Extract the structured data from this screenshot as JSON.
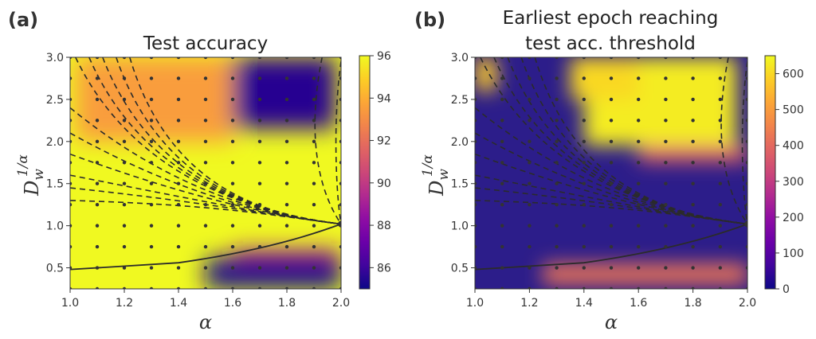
{
  "chart_data": [
    {
      "type": "heatmap",
      "panel_label": "(a)",
      "title": "Test accuracy",
      "xlabel": "α",
      "ylabel_main": "D",
      "ylabel_sub": "w",
      "ylabel_sup": "1/α",
      "xlim": [
        1.0,
        2.0
      ],
      "ylim": [
        0.25,
        3.0
      ],
      "xticks": [
        "1.0",
        "1.2",
        "1.4",
        "1.6",
        "1.8",
        "2.0"
      ],
      "yticks": [
        "0.5",
        "1.0",
        "1.5",
        "2.0",
        "2.5",
        "3.0"
      ],
      "colorbar": {
        "range": [
          85,
          96
        ],
        "ticks": [
          "86",
          "88",
          "90",
          "92",
          "94",
          "96"
        ],
        "colormap": "plasma"
      },
      "grid_points": {
        "alpha": [
          1.0,
          1.1,
          1.2,
          1.3,
          1.4,
          1.5,
          1.6,
          1.7,
          1.8,
          1.9,
          2.0
        ],
        "d": [
          0.25,
          0.5,
          0.75,
          1.0,
          1.25,
          1.5,
          1.75,
          2.0,
          2.25,
          2.5,
          2.75,
          3.0
        ]
      },
      "regions": [
        {
          "alpha": [
            1.6,
            1.98
          ],
          "d": [
            2.15,
            3.0
          ],
          "value": 85.5
        },
        {
          "alpha": [
            1.5,
            2.0
          ],
          "d": [
            0.25,
            0.62
          ],
          "value": 85.3
        },
        {
          "alpha": [
            1.02,
            1.6
          ],
          "d": [
            2.0,
            3.0
          ],
          "value": 93.5
        },
        {
          "alpha": [
            1.6,
            2.0
          ],
          "d": [
            0.62,
            0.72
          ],
          "value": 89.0
        }
      ]
    },
    {
      "type": "heatmap",
      "panel_label": "(b)",
      "title_lines": [
        "Earliest epoch reaching",
        "test acc. threshold"
      ],
      "xlabel": "α",
      "ylabel_main": "D",
      "ylabel_sub": "w",
      "ylabel_sup": "1/α",
      "xlim": [
        1.0,
        2.0
      ],
      "ylim": [
        0.25,
        3.0
      ],
      "xticks": [
        "1.0",
        "1.2",
        "1.4",
        "1.6",
        "1.8",
        "2.0"
      ],
      "yticks": [
        "0.5",
        "1.0",
        "1.5",
        "2.0",
        "2.5",
        "3.0"
      ],
      "colorbar": {
        "range": [
          0,
          650
        ],
        "ticks": [
          "0",
          "100",
          "200",
          "300",
          "400",
          "500",
          "600"
        ],
        "colormap": "plasma"
      },
      "grid_points": {
        "alpha": [
          1.0,
          1.1,
          1.2,
          1.3,
          1.4,
          1.5,
          1.6,
          1.7,
          1.8,
          1.9,
          2.0
        ],
        "d": [
          0.25,
          0.5,
          0.75,
          1.0,
          1.25,
          1.5,
          1.75,
          2.0,
          2.25,
          2.5,
          2.75,
          3.0
        ]
      },
      "regions": [
        {
          "alpha": [
            1.4,
            1.96
          ],
          "d": [
            1.95,
            3.0
          ],
          "value": 630
        },
        {
          "alpha": [
            1.35,
            1.6
          ],
          "d": [
            2.5,
            3.0
          ],
          "value": 600
        },
        {
          "alpha": [
            1.0,
            1.08
          ],
          "d": [
            2.6,
            3.0
          ],
          "value": 580
        },
        {
          "alpha": [
            1.25,
            2.0
          ],
          "d": [
            0.3,
            0.55
          ],
          "value": 420
        },
        {
          "alpha": [
            1.6,
            2.0
          ],
          "d": [
            1.75,
            1.95
          ],
          "value": 380
        }
      ]
    }
  ],
  "curves": {
    "dashed_origins_d": [
      3.0,
      3.0,
      3.0,
      3.0,
      3.0,
      2.4,
      2.1,
      1.85,
      1.6,
      1.45,
      1.3
    ],
    "solid_from": [
      1.0,
      0.48
    ],
    "solid_mid": [
      1.4,
      0.56
    ],
    "solid_to": [
      2.0,
      1.02
    ]
  }
}
